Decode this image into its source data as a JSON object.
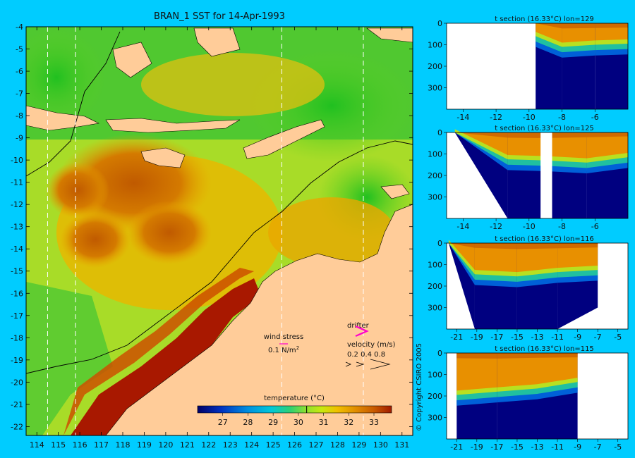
{
  "figure": {
    "title": "BRAN_1 SST for 14-Apr-1993",
    "copyright": "© Copyright CSIRO 2005",
    "colors": {
      "background": "#00ccff",
      "land": "#ffcc99",
      "palette": [
        "#000066",
        "#0030c0",
        "#0090e0",
        "#00c8d8",
        "#30d070",
        "#90e030",
        "#c8e810",
        "#f0c000",
        "#e08a00",
        "#c85a00",
        "#a01a00"
      ]
    }
  },
  "chart_data": [
    {
      "type": "heatmap",
      "title": "BRAN_1 SST for 14-Apr-1993",
      "variable": "sea surface temperature",
      "xlim": [
        113.5,
        131.5
      ],
      "ylim": [
        -22.4,
        -4
      ],
      "x_ticks": [
        "114",
        "115",
        "116",
        "117",
        "118",
        "119",
        "120",
        "121",
        "122",
        "123",
        "124",
        "125",
        "126",
        "127",
        "128",
        "129",
        "130",
        "131"
      ],
      "y_ticks": [
        "-4",
        "-5",
        "-6",
        "-7",
        "-8",
        "-9",
        "-10",
        "-11",
        "-12",
        "-13",
        "-14",
        "-15",
        "-16",
        "-17",
        "-18",
        "-19",
        "-20",
        "-21",
        "-22"
      ],
      "section_lines_lon": [
        114.5,
        115.8,
        125.4,
        129.2
      ],
      "colorbar": {
        "label": "temperature (°C)",
        "min": 26,
        "max": 33.7,
        "ticks": [
          "27",
          "28",
          "29",
          "30",
          "31",
          "32",
          "33"
        ],
        "marker": 30.33
      },
      "legend": {
        "wind_stress_label": "wind stress",
        "wind_stress_value": "0.1 N/m",
        "wind_stress_exp": "2",
        "drifter_label": "drifter",
        "velocity_label": "velocity (m/s)",
        "velocity_values": "0.2 0.4 0.8"
      }
    },
    {
      "type": "heatmap",
      "title": "t section (16.33°C) lon=129",
      "xlim": [
        -15,
        -4
      ],
      "ylim": [
        0,
        400
      ],
      "x_ticks": [
        "-14",
        "-12",
        "-10",
        "-8",
        "-6"
      ],
      "y_ticks": [
        "0",
        "100",
        "200",
        "300"
      ],
      "profile": [
        {
          "x": -9.6,
          "mix": 0,
          "cline": 55,
          "bot": 400
        },
        {
          "x": -8.0,
          "mix": 60,
          "cline": 105,
          "bot": 400
        },
        {
          "x": -6.0,
          "mix": 55,
          "cline": 95,
          "bot": 400
        },
        {
          "x": -4.0,
          "mix": 50,
          "cline": 90,
          "bot": 400
        }
      ]
    },
    {
      "type": "heatmap",
      "title": "t section (16.33°C) lon=125",
      "xlim": [
        -15,
        -4
      ],
      "ylim": [
        0,
        400
      ],
      "x_ticks": [
        "-14",
        "-12",
        "-10",
        "-8",
        "-6"
      ],
      "y_ticks": [
        "0",
        "100",
        "200",
        "300"
      ],
      "profile": [
        {
          "x": -14.5,
          "mix": 0,
          "cline": 0,
          "bot": 0
        },
        {
          "x": -11.3,
          "mix": 60,
          "cline": 120,
          "bot": 400
        },
        {
          "x": -9.0,
          "mix": 65,
          "cline": 125,
          "bot": 400
        },
        {
          "x": -6.5,
          "mix": 55,
          "cline": 135,
          "bot": 400
        },
        {
          "x": -4.0,
          "mix": 45,
          "cline": 110,
          "bot": 400
        }
      ],
      "gap_x": [
        -9.3,
        -8.6
      ]
    },
    {
      "type": "heatmap",
      "title": "t section (16.33°C) lon=116",
      "xlim": [
        -22,
        -4
      ],
      "ylim": [
        0,
        400
      ],
      "x_ticks": [
        "-21",
        "-19",
        "-17",
        "-15",
        "-13",
        "-11",
        "-9",
        "-7",
        "-5"
      ],
      "y_ticks": [
        "0",
        "100",
        "200",
        "300"
      ],
      "profile": [
        {
          "x": -21.8,
          "mix": 0,
          "cline": 0,
          "bot": 0
        },
        {
          "x": -19.2,
          "mix": 55,
          "cline": 140,
          "bot": 400
        },
        {
          "x": -15.0,
          "mix": 70,
          "cline": 150,
          "bot": 400
        },
        {
          "x": -11.0,
          "mix": 60,
          "cline": 130,
          "bot": 400
        },
        {
          "x": -7.0,
          "mix": 50,
          "cline": 120,
          "bot": 300
        }
      ]
    },
    {
      "type": "heatmap",
      "title": "t section (16.33°C) lon=115",
      "xlim": [
        -22,
        -4
      ],
      "ylim": [
        0,
        400
      ],
      "x_ticks": [
        "-21",
        "-19",
        "-17",
        "-15",
        "-13",
        "-11",
        "-9",
        "-7",
        "-5"
      ],
      "y_ticks": [
        "0",
        "100",
        "200",
        "300"
      ],
      "profile": [
        {
          "x": -21.0,
          "mix": 60,
          "cline": 190,
          "bot": 400
        },
        {
          "x": -17.0,
          "mix": 65,
          "cline": 175,
          "bot": 400
        },
        {
          "x": -13.0,
          "mix": 55,
          "cline": 160,
          "bot": 400
        },
        {
          "x": -9.0,
          "mix": 50,
          "cline": 130,
          "bot": 400
        }
      ]
    }
  ]
}
